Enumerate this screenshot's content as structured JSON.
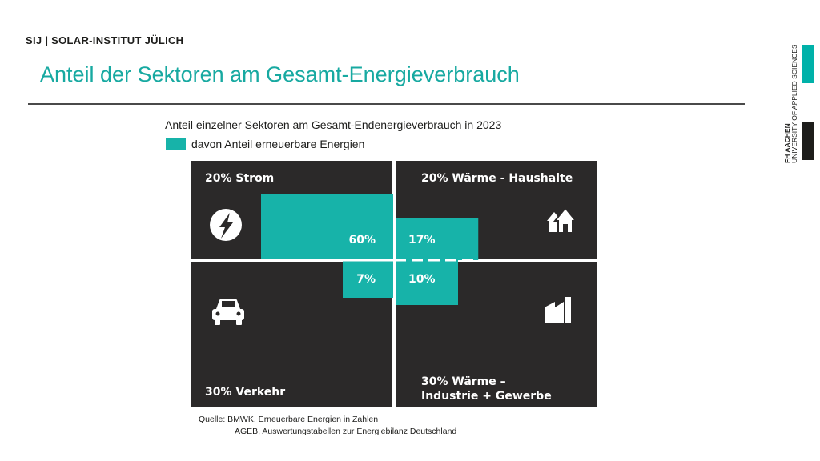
{
  "header": {
    "brand": "SIJ | SOLAR-INSTITUT JÜLICH",
    "title": "Anteil der Sektoren am Gesamt-Energieverbrauch",
    "side_logo_bold": "FH AACHEN",
    "side_logo_text": "UNIVERSITY OF APPLIED SCIENCES"
  },
  "colors": {
    "accent": "#17b3a9",
    "panel": "#2b2929",
    "text": "#1d1d1b"
  },
  "chart_data": {
    "type": "treemap",
    "title": "Anteil einzelner Sektoren am Gesamt-Endenergieverbrauch in 2023",
    "legend": "davon Anteil erneuerbare Energien",
    "sectors": [
      {
        "label": "20% Strom",
        "share": 20,
        "renewable": 60,
        "renewable_label": "60%",
        "icon": "lightning-bolt-icon"
      },
      {
        "label": "20% Wärme - Haushalte",
        "share": 20,
        "renewable": 17,
        "renewable_label": "17%",
        "icon": "houses-icon"
      },
      {
        "label": "30% Verkehr",
        "share": 30,
        "renewable": 7,
        "renewable_label": "7%",
        "icon": "car-icon"
      },
      {
        "label_lines": [
          "30% Wärme –",
          "Industrie + Gewerbe"
        ],
        "share": 30,
        "renewable": 10,
        "renewable_label": "10%",
        "icon": "factory-icon"
      }
    ]
  },
  "source": {
    "line1": "Quelle: BMWK, Erneuerbare Energien in Zahlen",
    "line2": "AGEB, Auswertungstabellen zur Energiebilanz Deutschland"
  }
}
